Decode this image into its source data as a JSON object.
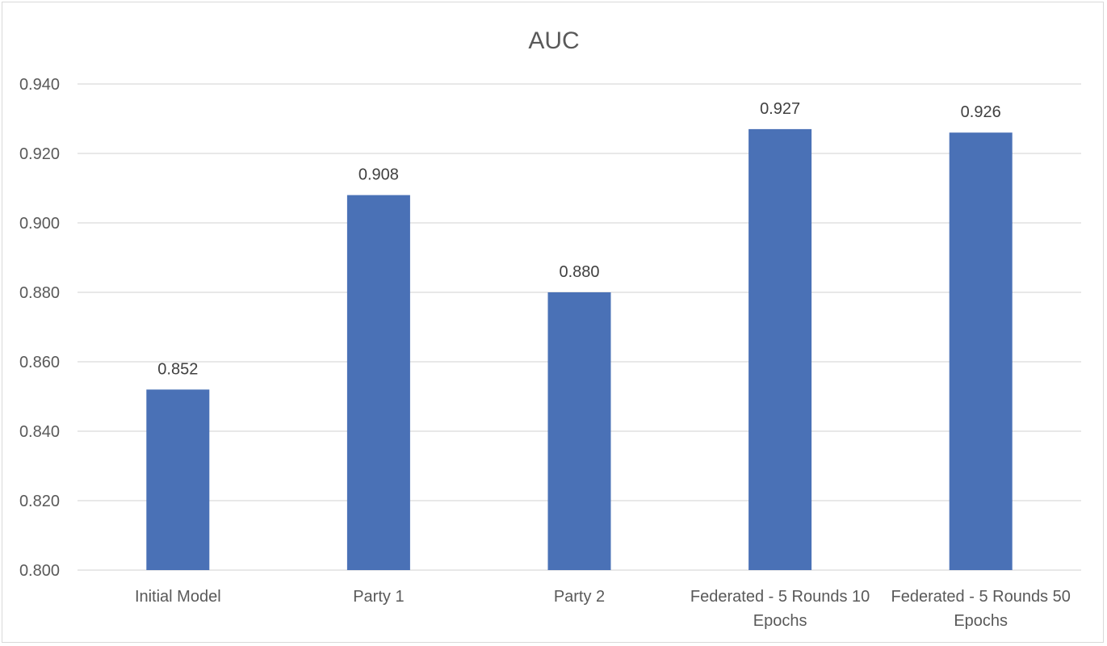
{
  "chart_data": {
    "type": "bar",
    "title": "AUC",
    "categories": [
      [
        "Initial Model"
      ],
      [
        "Party 1"
      ],
      [
        "Party 2"
      ],
      [
        "Federated - 5 Rounds 10",
        "Epochs"
      ],
      [
        "Federated - 5 Rounds 50",
        "Epochs"
      ]
    ],
    "values": [
      0.852,
      0.908,
      0.88,
      0.927,
      0.926
    ],
    "data_labels": [
      "0.852",
      "0.908",
      "0.880",
      "0.927",
      "0.926"
    ],
    "ylim": [
      0.8,
      0.94
    ],
    "yticks": [
      "0.800",
      "0.820",
      "0.840",
      "0.860",
      "0.880",
      "0.900",
      "0.920",
      "0.940"
    ],
    "ytick_values": [
      0.8,
      0.82,
      0.84,
      0.86,
      0.88,
      0.9,
      0.92,
      0.94
    ],
    "grid": true,
    "legend": "none",
    "bar_color": "#4a71b6"
  }
}
